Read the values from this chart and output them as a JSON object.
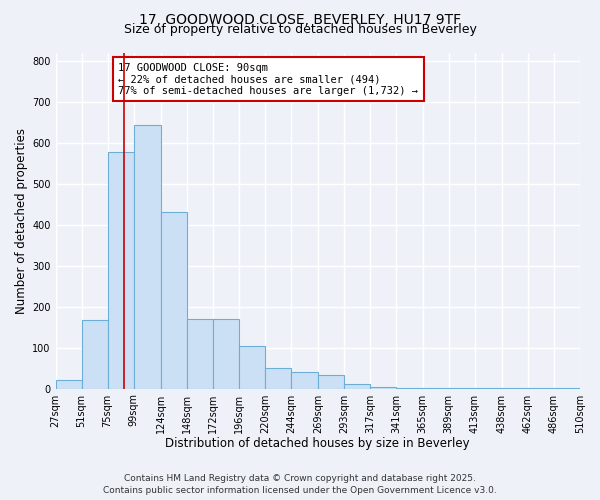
{
  "title": "17, GOODWOOD CLOSE, BEVERLEY, HU17 9TF",
  "subtitle": "Size of property relative to detached houses in Beverley",
  "xlabel": "Distribution of detached houses by size in Beverley",
  "ylabel": "Number of detached properties",
  "bar_left_edges": [
    27,
    51,
    75,
    99,
    124,
    148,
    172,
    196,
    220,
    244,
    269,
    293,
    317,
    341,
    365,
    389,
    413,
    438,
    462,
    486
  ],
  "bar_widths": [
    24,
    24,
    24,
    25,
    24,
    24,
    24,
    24,
    24,
    25,
    24,
    24,
    24,
    24,
    24,
    24,
    25,
    24,
    24,
    24
  ],
  "bar_heights": [
    20,
    168,
    578,
    642,
    430,
    170,
    170,
    103,
    50,
    40,
    33,
    12,
    5,
    2,
    2,
    2,
    1,
    1,
    1,
    1
  ],
  "bar_color": "#cce0f5",
  "bar_edge_color": "#6baed6",
  "vline_x": 90,
  "vline_color": "#cc0000",
  "annotation_title": "17 GOODWOOD CLOSE: 90sqm",
  "annotation_line1": "← 22% of detached houses are smaller (494)",
  "annotation_line2": "77% of semi-detached houses are larger (1,732) →",
  "annotation_box_color": "#cc0000",
  "annotation_bg": "white",
  "tick_labels": [
    "27sqm",
    "51sqm",
    "75sqm",
    "99sqm",
    "124sqm",
    "148sqm",
    "172sqm",
    "196sqm",
    "220sqm",
    "244sqm",
    "269sqm",
    "293sqm",
    "317sqm",
    "341sqm",
    "365sqm",
    "389sqm",
    "413sqm",
    "438sqm",
    "462sqm",
    "486sqm",
    "510sqm"
  ],
  "ylim": [
    0,
    820
  ],
  "yticks": [
    0,
    100,
    200,
    300,
    400,
    500,
    600,
    700,
    800
  ],
  "footer1": "Contains HM Land Registry data © Crown copyright and database right 2025.",
  "footer2": "Contains public sector information licensed under the Open Government Licence v3.0.",
  "bg_color": "#eef2f8",
  "grid_color": "#ffffff",
  "title_fontsize": 10,
  "subtitle_fontsize": 9,
  "axis_label_fontsize": 8.5,
  "tick_fontsize": 7,
  "footer_fontsize": 6.5,
  "ann_fontsize": 7.5
}
